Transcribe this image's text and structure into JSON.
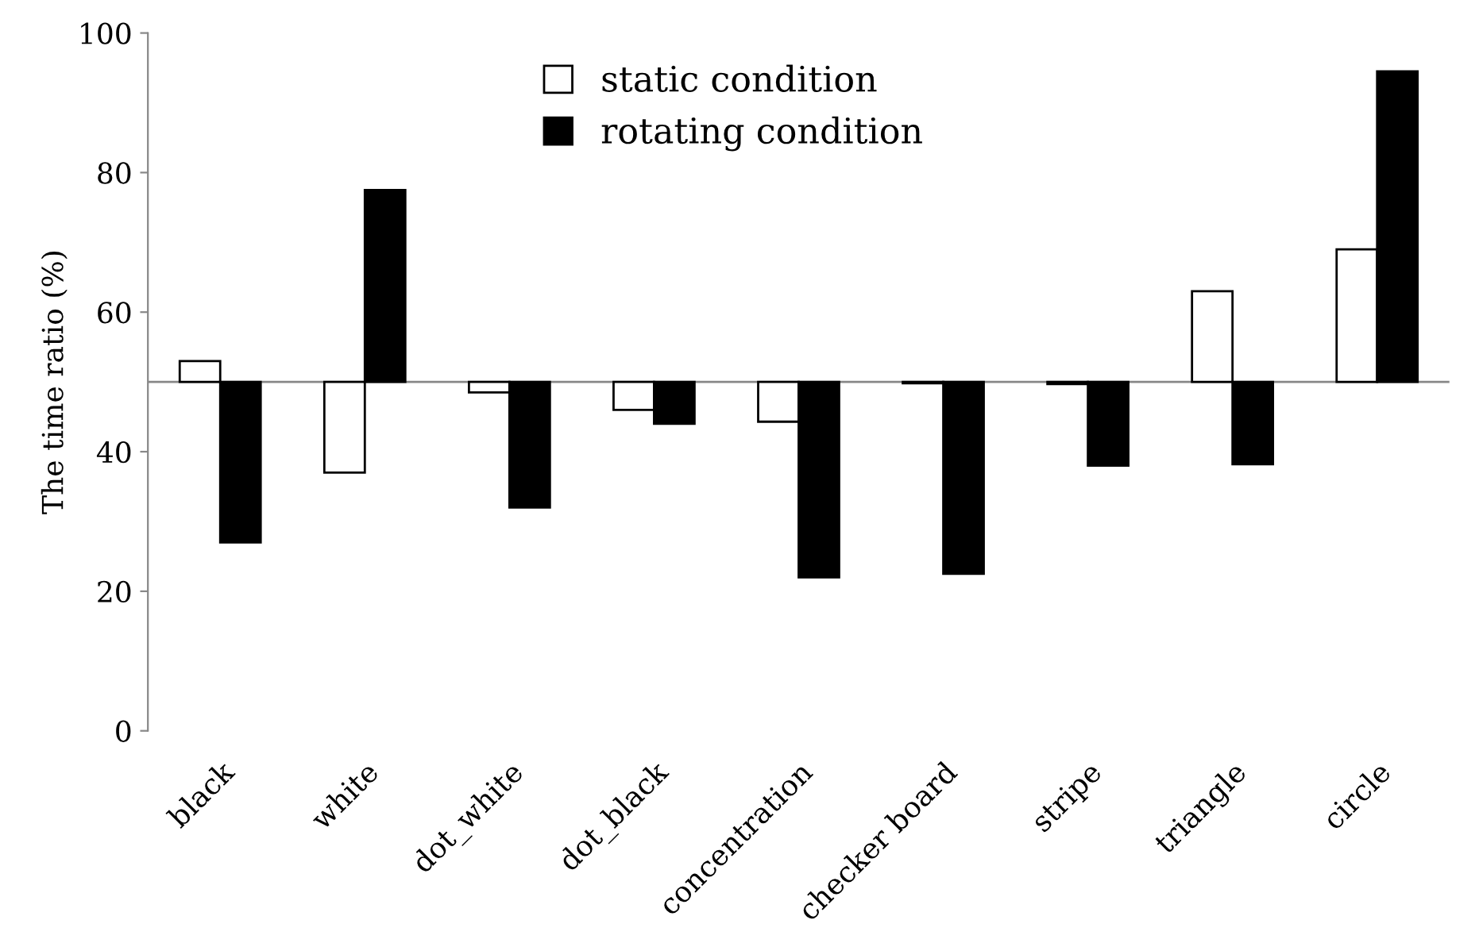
{
  "chart_data": {
    "type": "bar",
    "ylabel": "The time ratio (%)",
    "categories": [
      "black",
      "white",
      "dot_white",
      "dot_black",
      "concentration",
      "checker board",
      "stripe",
      "triangle",
      "circle"
    ],
    "series": [
      {
        "name": "static condition",
        "color": "#ffffff",
        "base": [
          50,
          50,
          50,
          50,
          50,
          50,
          50,
          50,
          50
        ],
        "values": [
          3,
          -13,
          -1.5,
          -4,
          -5.7,
          -0.2,
          -0.3,
          13,
          19
        ]
      },
      {
        "name": "rotating condition",
        "color": "#000000",
        "base": [
          50,
          50,
          50,
          50,
          50,
          50,
          50,
          50,
          50
        ],
        "values": [
          -23,
          27.5,
          -18,
          -6,
          -28,
          -27.5,
          -12,
          -11.8,
          44.5
        ]
      }
    ],
    "ref_lines": [
      {
        "axis": "y",
        "value": 50,
        "color": "#888888"
      }
    ],
    "ylim": [
      0,
      100
    ],
    "yticks": [
      0,
      20,
      40,
      60,
      80,
      100
    ],
    "grid": false,
    "legend": "top"
  }
}
